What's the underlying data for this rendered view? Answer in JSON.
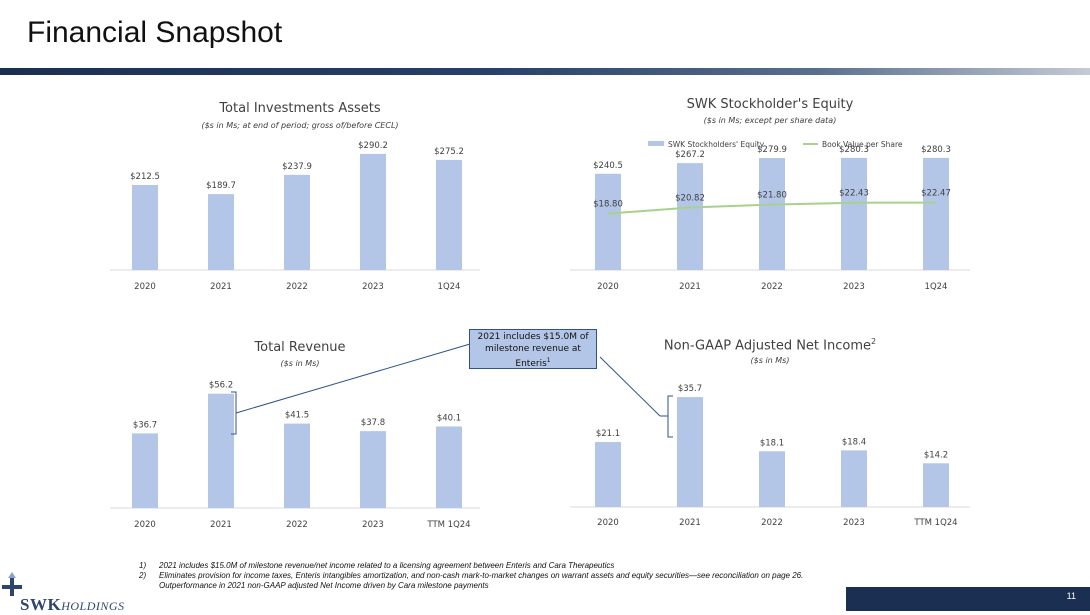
{
  "page": {
    "title": "Financial Snapshot",
    "page_number": "11",
    "callout": {
      "line1": "2021 includes $15.0M of",
      "line2": "milestone revenue at",
      "line3": "Enteris",
      "sup": "1"
    },
    "footnotes": [
      {
        "num": "1)",
        "text": "2021 includes $15.0M of milestone revenue/net income related to a licensing agreement between Enteris and Cara Therapeutics"
      },
      {
        "num": "2)",
        "text": "Eliminates provision for income taxes, Enteris intangibles amortization, and non-cash mark-to-market changes on warrant assets and equity securities—see reconciliation on page 26."
      },
      {
        "num": "",
        "text": "Outperformance in 2021 non-GAAP adjusted Net Income driven by Cara milestone payments"
      }
    ],
    "logo": {
      "brand": "SWK",
      "suffix": "HOLDINGS"
    },
    "colors": {
      "bar": "#b4c6e7",
      "line": "#a9d18e",
      "band": "#1a2f52"
    }
  },
  "chart_data": [
    {
      "type": "bar",
      "title": "Total Investments Assets",
      "subtitle": "($s in Ms; at end of period; gross of/before CECL)",
      "categories": [
        "2020",
        "2021",
        "2022",
        "2023",
        "1Q24"
      ],
      "values": [
        212.5,
        189.7,
        237.9,
        290.2,
        275.2
      ],
      "labels": [
        "$212.5",
        "$189.7",
        "$237.9",
        "$290.2",
        "$275.2"
      ],
      "ylim": [
        0,
        300
      ]
    },
    {
      "type": "bar",
      "title": "SWK Stockholder's Equity",
      "subtitle": "($s in Ms; except per share data)",
      "categories": [
        "2020",
        "2021",
        "2022",
        "2023",
        "1Q24"
      ],
      "legend": [
        "SWK Stockholders' Equity",
        "Book Value per Share"
      ],
      "legend_position": "top",
      "series": [
        {
          "name": "SWK Stockholders' Equity",
          "type": "bar",
          "values": [
            240.5,
            267.2,
            279.9,
            280.3,
            280.3
          ],
          "labels": [
            "$240.5",
            "$267.2",
            "$279.9",
            "$280.3",
            "$280.3"
          ]
        },
        {
          "name": "Book Value per Share",
          "type": "line",
          "values": [
            18.8,
            20.82,
            21.8,
            22.43,
            22.47
          ],
          "labels": [
            "$18.80",
            "$20.82",
            "$21.80",
            "$22.43",
            "$22.47"
          ]
        }
      ],
      "ylim": [
        0,
        300
      ],
      "y2lim": [
        0,
        40
      ]
    },
    {
      "type": "bar",
      "title": "Total Revenue",
      "subtitle": "($s in Ms)",
      "categories": [
        "2020",
        "2021",
        "2022",
        "2023",
        "TTM 1Q24"
      ],
      "values": [
        36.7,
        56.2,
        41.5,
        37.8,
        40.1
      ],
      "labels": [
        "$36.7",
        "$56.2",
        "$41.5",
        "$37.8",
        "$40.1"
      ],
      "ylim": [
        0,
        60
      ]
    },
    {
      "type": "bar",
      "title": "Non-GAAP Adjusted Net Income",
      "title_sup": "2",
      "subtitle": "($s in Ms)",
      "categories": [
        "2020",
        "2021",
        "2022",
        "2023",
        "TTM 1Q24"
      ],
      "values": [
        21.1,
        35.7,
        18.1,
        18.4,
        14.2
      ],
      "labels": [
        "$21.1",
        "$35.7",
        "$18.1",
        "$18.4",
        "$14.2"
      ],
      "ylim": [
        0,
        38
      ]
    }
  ]
}
